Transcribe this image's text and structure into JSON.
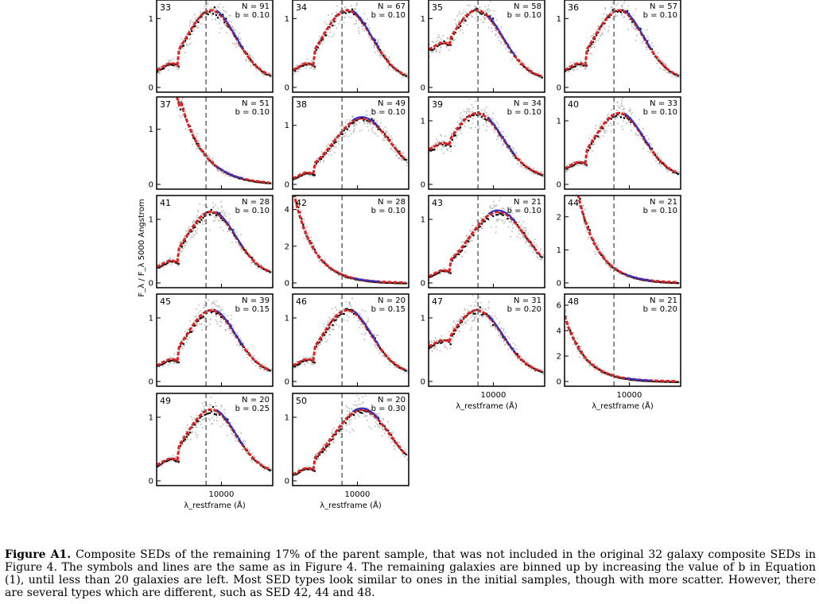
{
  "chart_data": {
    "type": "scatter",
    "ylabel": "F_λ / F_λ 5000 Angstrom",
    "xlabel": "λ_restframe (Å)",
    "x_tick_label": "10000",
    "dashed_line_x": 7200,
    "x_range": [
      2500,
      30000
    ],
    "x_scale": "log",
    "legend_N_prefix": "N = ",
    "legend_b_prefix": "b = ",
    "panels": [
      {
        "id": "33",
        "N": "91",
        "b": "0.10",
        "ymax": 1.2,
        "yticks": [
          "0",
          "1"
        ],
        "shape": "bump"
      },
      {
        "id": "34",
        "N": "67",
        "b": "0.10",
        "ymax": 1.2,
        "yticks": [
          "0",
          "1"
        ],
        "shape": "bump"
      },
      {
        "id": "35",
        "N": "58",
        "b": "0.10",
        "ymax": 1.2,
        "yticks": [
          "0",
          "1"
        ],
        "shape": "blue_bump"
      },
      {
        "id": "36",
        "N": "57",
        "b": "0.10",
        "ymax": 1.2,
        "yticks": [
          "0",
          "1"
        ],
        "shape": "bump"
      },
      {
        "id": "37",
        "N": "51",
        "b": "0.10",
        "ymax": 1.5,
        "yticks": [
          "0",
          "1"
        ],
        "shape": "blue"
      },
      {
        "id": "38",
        "N": "49",
        "b": "0.10",
        "ymax": 1.4,
        "yticks": [
          "0",
          "1"
        ],
        "shape": "redbump"
      },
      {
        "id": "39",
        "N": "34",
        "b": "0.10",
        "ymax": 1.3,
        "yticks": [
          "0",
          "1"
        ],
        "shape": "blue_bump"
      },
      {
        "id": "40",
        "N": "33",
        "b": "0.10",
        "ymax": 1.3,
        "yticks": [
          "0",
          "1"
        ],
        "shape": "bump"
      },
      {
        "id": "41",
        "N": "28",
        "b": "0.10",
        "ymax": 1.3,
        "yticks": [
          "0",
          "1"
        ],
        "shape": "bump"
      },
      {
        "id": "42",
        "N": "28",
        "b": "0.10",
        "ymax": 4.5,
        "yticks": [
          "0",
          "2",
          "4"
        ],
        "shape": "steep"
      },
      {
        "id": "43",
        "N": "21",
        "b": "0.10",
        "ymax": 1.3,
        "yticks": [
          "0",
          "1"
        ],
        "shape": "redbump"
      },
      {
        "id": "44",
        "N": "21",
        "b": "0.10",
        "ymax": 2.5,
        "yticks": [
          "0",
          "1",
          "2"
        ],
        "shape": "steep"
      },
      {
        "id": "45",
        "N": "39",
        "b": "0.15",
        "ymax": 1.3,
        "yticks": [
          "0",
          "1"
        ],
        "shape": "bump"
      },
      {
        "id": "46",
        "N": "20",
        "b": "0.15",
        "ymax": 1.3,
        "yticks": [
          "0",
          "1"
        ],
        "shape": "bump"
      },
      {
        "id": "47",
        "N": "31",
        "b": "0.20",
        "ymax": 1.3,
        "yticks": [
          "0",
          "1"
        ],
        "shape": "blue_bump"
      },
      {
        "id": "48",
        "N": "21",
        "b": "0.20",
        "ymax": 6.5,
        "yticks": [
          "0",
          "2",
          "4",
          "6"
        ],
        "shape": "steep"
      },
      {
        "id": "49",
        "N": "20",
        "b": "0.25",
        "ymax": 1.3,
        "yticks": [
          "0",
          "1"
        ],
        "shape": "bump"
      },
      {
        "id": "50",
        "N": "20",
        "b": "0.30",
        "ymax": 1.3,
        "yticks": [
          "0",
          "1"
        ],
        "shape": "redbump"
      }
    ]
  },
  "caption": {
    "label": "Figure A1.",
    "text": "Composite SEDs of the remaining 17% of the parent sample, that was not included in the original 32 galaxy composite SEDs in Figure 4. The symbols and lines are the same as in Figure 4. The remaining galaxies are binned up by increasing the value of b in Equation (1), until less than 20 galaxies are left. Most SED types look similar to ones in the initial samples, though with more scatter. However, there are several types which are different, such as SED 42, 44 and 48."
  }
}
